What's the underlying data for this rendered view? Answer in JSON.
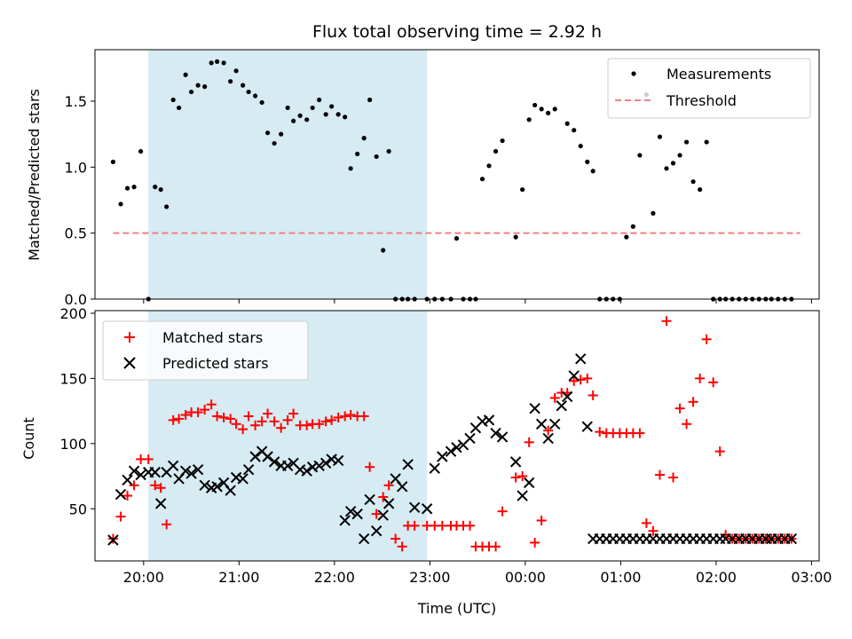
{
  "chart_data": [
    {
      "type": "scatter",
      "title": "Flux total observing time = 2.92 h",
      "xlabel": "",
      "ylabel": "Matched/Predicted stars",
      "xlim": [
        19.49,
        27.08
      ],
      "ylim": [
        0,
        1.89
      ],
      "xticks": [
        20,
        21,
        22,
        23,
        24,
        25,
        26,
        27
      ],
      "yticks": [
        0.0,
        0.5,
        1.0,
        1.5
      ],
      "ytick_labels": [
        "0.0",
        "0.5",
        "1.0",
        "1.5"
      ],
      "shaded_region": [
        20.05,
        22.97
      ],
      "legend_position": "upper right",
      "series": [
        {
          "name": "Measurements",
          "marker": "dot",
          "color": "#000000",
          "x": [
            19.68,
            19.76,
            19.83,
            19.9,
            19.97,
            20.05,
            20.12,
            20.18,
            20.24,
            20.31,
            20.37,
            20.44,
            20.5,
            20.57,
            20.64,
            20.71,
            20.77,
            20.84,
            20.91,
            20.97,
            21.04,
            21.1,
            21.17,
            21.24,
            21.3,
            21.37,
            21.44,
            21.51,
            21.57,
            21.64,
            21.71,
            21.77,
            21.84,
            21.91,
            21.97,
            22.04,
            22.11,
            22.17,
            22.24,
            22.31,
            22.37,
            22.44,
            22.51,
            22.57,
            22.64,
            22.71,
            22.77,
            22.84,
            22.97,
            23.05,
            23.13,
            23.22,
            23.28,
            23.35,
            23.42,
            23.48,
            23.55,
            23.62,
            23.69,
            23.76,
            23.9,
            23.97,
            24.04,
            24.1,
            24.17,
            24.24,
            24.31,
            24.44,
            24.51,
            24.58,
            24.65,
            24.71,
            24.78,
            24.85,
            24.92,
            24.99,
            25.06,
            25.13,
            25.2,
            25.27,
            25.34,
            25.41,
            25.48,
            25.55,
            25.62,
            25.69,
            25.76,
            25.83,
            25.9,
            25.97,
            26.04,
            26.1,
            26.17,
            26.24,
            26.31,
            26.38,
            26.45,
            26.52,
            26.58,
            26.65,
            26.72,
            26.79
          ],
          "y": [
            1.04,
            0.72,
            0.84,
            0.85,
            1.12,
            0.0,
            0.85,
            0.83,
            0.7,
            1.51,
            1.45,
            1.7,
            1.57,
            1.62,
            1.61,
            1.79,
            1.8,
            1.79,
            1.65,
            1.73,
            1.62,
            1.57,
            1.54,
            1.49,
            1.26,
            1.18,
            1.25,
            1.45,
            1.35,
            1.39,
            1.36,
            1.45,
            1.51,
            1.4,
            1.46,
            1.4,
            1.38,
            0.99,
            1.1,
            1.22,
            1.51,
            1.08,
            0.37,
            1.12,
            0.0,
            0.0,
            0.0,
            0.0,
            0.0,
            0.0,
            0.0,
            0.0,
            0.46,
            0.0,
            0.0,
            0.0,
            0.91,
            1.01,
            1.12,
            1.2,
            0.47,
            0.83,
            1.36,
            1.47,
            1.44,
            1.41,
            1.44,
            1.33,
            1.28,
            1.16,
            1.04,
            0.97,
            0.0,
            0.0,
            0.0,
            0.0,
            0.47,
            0.55,
            1.09,
            1.55,
            0.65,
            1.23,
            0.99,
            1.03,
            1.09,
            1.19,
            0.89,
            0.83,
            1.19,
            0.0,
            0.0,
            0.0,
            0.0,
            0.0,
            0.0,
            0.0,
            0.0,
            0.0,
            0.0,
            0.0,
            0.0,
            0.0
          ]
        },
        {
          "name": "Threshold",
          "marker": "dashed-line",
          "color": "#f08080",
          "x": [
            19.68,
            26.88
          ],
          "y": [
            0.5,
            0.5
          ]
        }
      ]
    },
    {
      "type": "scatter",
      "title": "",
      "xlabel": "Time (UTC)",
      "ylabel": "Count",
      "xlim": [
        19.49,
        27.08
      ],
      "ylim": [
        10,
        202
      ],
      "xticks": [
        20,
        21,
        22,
        23,
        24,
        25,
        26,
        27
      ],
      "xtick_labels": [
        "20:00",
        "21:00",
        "22:00",
        "23:00",
        "00:00",
        "01:00",
        "02:00",
        "03:00"
      ],
      "yticks": [
        50,
        100,
        150,
        200
      ],
      "ytick_labels": [
        "50",
        "100",
        "150",
        "200"
      ],
      "shaded_region": [
        20.05,
        22.97
      ],
      "legend_position": "upper left",
      "series": [
        {
          "name": "Matched stars",
          "marker": "plus",
          "color": "#ff0000",
          "x": [
            19.68,
            19.76,
            19.83,
            19.9,
            19.97,
            20.05,
            20.12,
            20.18,
            20.24,
            20.31,
            20.37,
            20.44,
            20.5,
            20.57,
            20.64,
            20.71,
            20.77,
            20.84,
            20.91,
            20.97,
            21.04,
            21.1,
            21.17,
            21.24,
            21.3,
            21.37,
            21.44,
            21.51,
            21.57,
            21.64,
            21.71,
            21.77,
            21.84,
            21.91,
            21.97,
            22.04,
            22.11,
            22.17,
            22.24,
            22.31,
            22.37,
            22.44,
            22.51,
            22.57,
            22.64,
            22.71,
            22.77,
            22.84,
            22.97,
            23.05,
            23.13,
            23.22,
            23.28,
            23.35,
            23.42,
            23.48,
            23.55,
            23.62,
            23.69,
            23.76,
            23.9,
            23.97,
            24.04,
            24.1,
            24.17,
            24.24,
            24.31,
            24.38,
            24.44,
            24.51,
            24.58,
            24.65,
            24.71,
            24.78,
            24.85,
            24.92,
            24.99,
            25.06,
            25.13,
            25.2,
            25.27,
            25.34,
            25.41,
            25.48,
            25.55,
            25.62,
            25.69,
            25.76,
            25.83,
            25.9,
            25.97,
            26.04,
            26.1,
            26.17,
            26.24,
            26.31,
            26.38,
            26.45,
            26.52,
            26.58,
            26.65,
            26.72,
            26.79
          ],
          "y": [
            27,
            44,
            60,
            68,
            88,
            88,
            68,
            66,
            38,
            118,
            119,
            122,
            124,
            124,
            126,
            130,
            121,
            120,
            119,
            115,
            111,
            121,
            114,
            117,
            123,
            117,
            112,
            118,
            123,
            114,
            114,
            115,
            115,
            117,
            118,
            120,
            121,
            122,
            121,
            121,
            82,
            46,
            59,
            68,
            27,
            21,
            37,
            37,
            37,
            37,
            37,
            37,
            37,
            37,
            37,
            21,
            21,
            21,
            21,
            48,
            74,
            75,
            101,
            24,
            41,
            110,
            135,
            139,
            139,
            148,
            149,
            150,
            137,
            109,
            108,
            108,
            108,
            108,
            108,
            108,
            39,
            33,
            76,
            194,
            74,
            127,
            115,
            132,
            150,
            180,
            147,
            94,
            30,
            27,
            27,
            27,
            27,
            27,
            27,
            27,
            27,
            27,
            27
          ]
        },
        {
          "name": "Predicted stars",
          "marker": "x",
          "color": "#000000",
          "x": [
            19.68,
            19.76,
            19.83,
            19.9,
            19.97,
            20.05,
            20.12,
            20.18,
            20.24,
            20.31,
            20.37,
            20.44,
            20.5,
            20.57,
            20.64,
            20.71,
            20.77,
            20.84,
            20.91,
            20.97,
            21.04,
            21.1,
            21.17,
            21.24,
            21.3,
            21.37,
            21.44,
            21.51,
            21.57,
            21.64,
            21.71,
            21.77,
            21.84,
            21.91,
            21.97,
            22.04,
            22.11,
            22.17,
            22.24,
            22.31,
            22.37,
            22.44,
            22.51,
            22.57,
            22.64,
            22.71,
            22.77,
            22.84,
            22.97,
            23.05,
            23.13,
            23.22,
            23.28,
            23.35,
            23.42,
            23.48,
            23.55,
            23.62,
            23.69,
            23.76,
            23.9,
            23.97,
            24.04,
            24.1,
            24.17,
            24.24,
            24.31,
            24.38,
            24.44,
            24.51,
            24.58,
            24.65,
            24.71,
            24.78,
            24.85,
            24.92,
            24.99,
            25.06,
            25.13,
            25.2,
            25.27,
            25.34,
            25.41,
            25.48,
            25.55,
            25.62,
            25.69,
            25.76,
            25.83,
            25.9,
            25.97,
            26.04,
            26.1,
            26.17,
            26.24,
            26.31,
            26.38,
            26.45,
            26.52,
            26.58,
            26.65,
            26.72,
            26.79
          ],
          "y": [
            26,
            61,
            72,
            79,
            76,
            78,
            78,
            54,
            78,
            83,
            73,
            79,
            77,
            80,
            68,
            66,
            67,
            70,
            64,
            74,
            73,
            80,
            90,
            94,
            90,
            86,
            83,
            83,
            85,
            80,
            79,
            82,
            83,
            85,
            88,
            87,
            41,
            48,
            46,
            27,
            57,
            33,
            45,
            54,
            73,
            67,
            84,
            51,
            50,
            81,
            90,
            94,
            97,
            99,
            104,
            112,
            117,
            118,
            108,
            105,
            86,
            60,
            70,
            127,
            115,
            104,
            115,
            129,
            136,
            152,
            165,
            113,
            27,
            27,
            27,
            27,
            27,
            27,
            27,
            27,
            27,
            27,
            27,
            27,
            27,
            27,
            27,
            27,
            27,
            27,
            27,
            27,
            27,
            27,
            27,
            27,
            27,
            27,
            27,
            27,
            27,
            27,
            27
          ]
        }
      ]
    }
  ]
}
